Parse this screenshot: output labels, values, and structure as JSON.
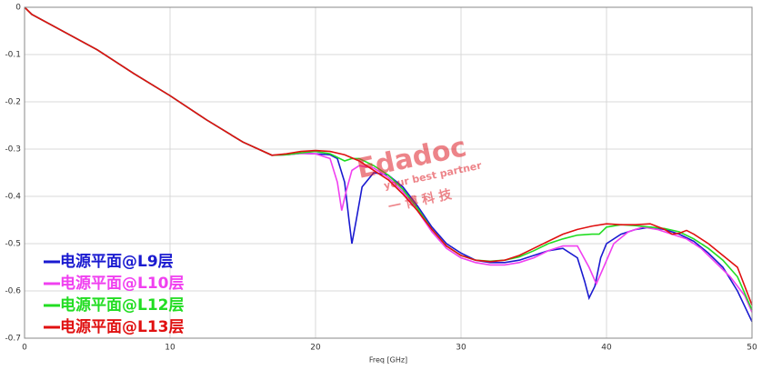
{
  "chart_data": {
    "type": "line",
    "xlabel": "Freq [GHz]",
    "xlim": [
      0,
      50
    ],
    "xticks": [
      0,
      10,
      20,
      30,
      40,
      50
    ],
    "ylim": [
      -0.7,
      0
    ],
    "yticks": [
      0,
      -0.1,
      -0.2,
      -0.3,
      -0.4,
      -0.5,
      -0.6,
      -0.7
    ],
    "grid": true,
    "legend": "lower-left",
    "watermark": {
      "brand": "Edadoc",
      "slogan": "your best partner",
      "company": "一 博 科 技"
    },
    "series": [
      {
        "name": "电源平面@L9层",
        "color": "#1a1ad0",
        "x": [
          0,
          0.5,
          2,
          5,
          7.5,
          10,
          12.5,
          15,
          17,
          18,
          19,
          20,
          21,
          21.5,
          22,
          22.3,
          22.5,
          22.8,
          23.2,
          24,
          25,
          26,
          27,
          28,
          29,
          30,
          31,
          32,
          33,
          34,
          35,
          36,
          37,
          38,
          38.5,
          38.8,
          39.2,
          39.6,
          40,
          41,
          42,
          43,
          44,
          45,
          46,
          47,
          48,
          49,
          50
        ],
        "values": [
          0,
          -0.015,
          -0.04,
          -0.09,
          -0.14,
          -0.187,
          -0.238,
          -0.285,
          -0.313,
          -0.312,
          -0.309,
          -0.31,
          -0.312,
          -0.32,
          -0.37,
          -0.45,
          -0.5,
          -0.45,
          -0.38,
          -0.35,
          -0.355,
          -0.38,
          -0.42,
          -0.465,
          -0.5,
          -0.52,
          -0.535,
          -0.54,
          -0.54,
          -0.535,
          -0.525,
          -0.515,
          -0.51,
          -0.53,
          -0.58,
          -0.615,
          -0.59,
          -0.53,
          -0.5,
          -0.48,
          -0.47,
          -0.465,
          -0.47,
          -0.48,
          -0.495,
          -0.52,
          -0.55,
          -0.6,
          -0.665
        ]
      },
      {
        "name": "电源平面@L10层",
        "color": "#f040f0",
        "x": [
          0,
          0.5,
          2,
          5,
          7.5,
          10,
          12.5,
          15,
          17,
          18,
          19,
          20,
          21,
          21.5,
          21.8,
          22.1,
          22.5,
          23,
          24,
          25,
          26,
          27,
          28,
          29,
          30,
          31,
          32,
          33,
          34,
          35,
          36,
          37,
          38,
          38.8,
          39.3,
          39.8,
          40.5,
          41.5,
          42.5,
          43.5,
          44.5,
          45.5,
          46.5,
          47.5,
          48.5,
          49.5,
          50
        ],
        "values": [
          0,
          -0.015,
          -0.04,
          -0.09,
          -0.14,
          -0.187,
          -0.238,
          -0.285,
          -0.313,
          -0.312,
          -0.309,
          -0.31,
          -0.32,
          -0.37,
          -0.43,
          -0.39,
          -0.345,
          -0.335,
          -0.34,
          -0.36,
          -0.39,
          -0.43,
          -0.475,
          -0.51,
          -0.53,
          -0.54,
          -0.545,
          -0.545,
          -0.54,
          -0.53,
          -0.515,
          -0.505,
          -0.505,
          -0.55,
          -0.585,
          -0.55,
          -0.5,
          -0.475,
          -0.465,
          -0.47,
          -0.48,
          -0.49,
          -0.51,
          -0.54,
          -0.57,
          -0.61,
          -0.645
        ]
      },
      {
        "name": "电源平面@L12层",
        "color": "#22dd22",
        "x": [
          0,
          0.5,
          2,
          5,
          7.5,
          10,
          12.5,
          15,
          17,
          18,
          19,
          20,
          21,
          22,
          22.5,
          23,
          24,
          25,
          26,
          27,
          28,
          29,
          30,
          31,
          32,
          33,
          34,
          35,
          36,
          37,
          38,
          39,
          39.5,
          40,
          41,
          42,
          43,
          44,
          45,
          46,
          47,
          48,
          49,
          50
        ],
        "values": [
          0,
          -0.015,
          -0.04,
          -0.09,
          -0.14,
          -0.187,
          -0.238,
          -0.285,
          -0.313,
          -0.312,
          -0.308,
          -0.305,
          -0.31,
          -0.325,
          -0.32,
          -0.32,
          -0.335,
          -0.355,
          -0.385,
          -0.425,
          -0.47,
          -0.505,
          -0.525,
          -0.535,
          -0.537,
          -0.535,
          -0.528,
          -0.515,
          -0.5,
          -0.49,
          -0.482,
          -0.48,
          -0.48,
          -0.465,
          -0.46,
          -0.462,
          -0.465,
          -0.468,
          -0.475,
          -0.49,
          -0.51,
          -0.535,
          -0.57,
          -0.64
        ]
      },
      {
        "name": "电源平面@L13层",
        "color": "#e01010",
        "x": [
          0,
          0.5,
          2,
          5,
          7.5,
          10,
          12.5,
          15,
          17,
          18,
          19,
          20,
          21,
          22,
          23,
          24,
          25,
          26,
          27,
          28,
          29,
          30,
          31,
          32,
          33,
          34,
          35,
          36,
          37,
          38,
          39,
          40,
          41,
          42,
          43,
          44,
          44.5,
          45,
          45.5,
          46,
          47,
          48,
          49,
          50
        ],
        "values": [
          0,
          -0.015,
          -0.04,
          -0.09,
          -0.14,
          -0.187,
          -0.238,
          -0.285,
          -0.313,
          -0.31,
          -0.305,
          -0.303,
          -0.305,
          -0.312,
          -0.325,
          -0.345,
          -0.365,
          -0.395,
          -0.43,
          -0.47,
          -0.505,
          -0.525,
          -0.535,
          -0.538,
          -0.535,
          -0.525,
          -0.51,
          -0.495,
          -0.48,
          -0.47,
          -0.463,
          -0.458,
          -0.46,
          -0.46,
          -0.458,
          -0.47,
          -0.48,
          -0.478,
          -0.472,
          -0.48,
          -0.5,
          -0.525,
          -0.55,
          -0.63
        ]
      }
    ]
  }
}
